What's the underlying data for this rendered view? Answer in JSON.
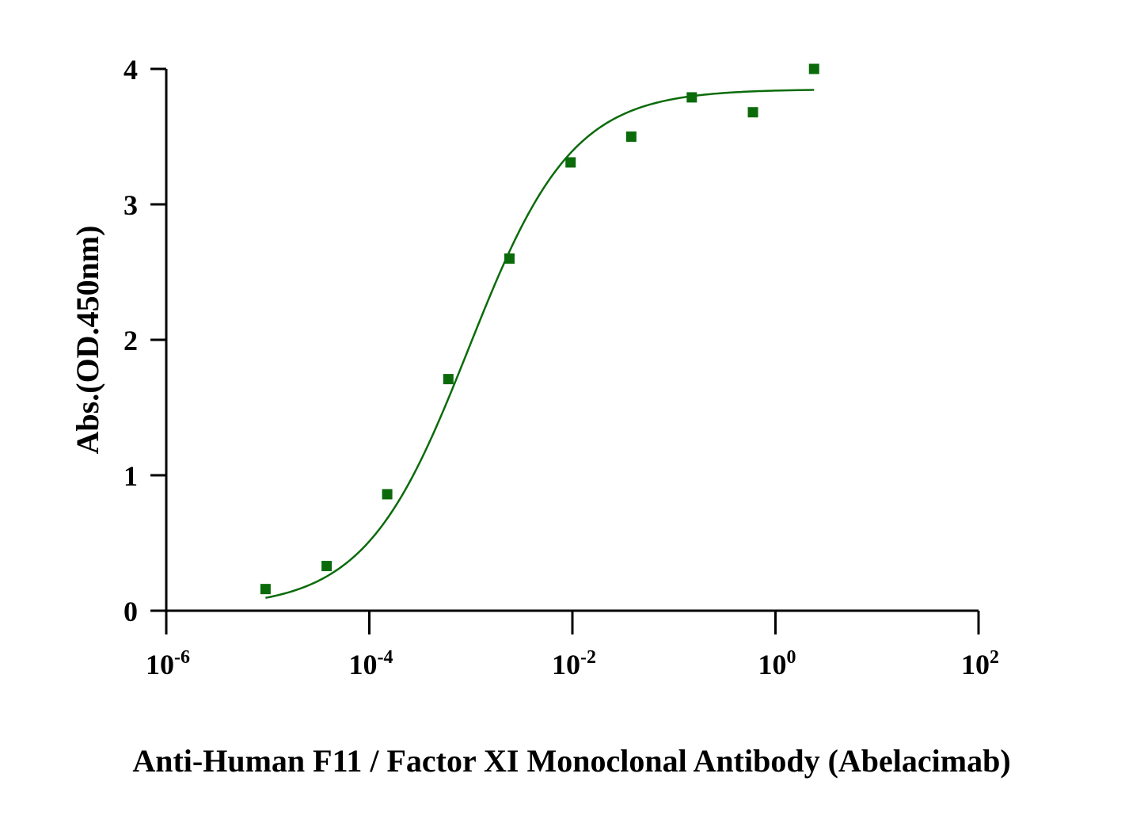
{
  "chart_data": {
    "type": "scatter",
    "title": "",
    "xlabel": "Anti-Human F11 / Factor XI Monoclonal Antibody (Abelacimab)",
    "ylabel": "Abs.(OD.450nm)",
    "xscale": "log",
    "xlim": [
      1e-06,
      100
    ],
    "ylim": [
      0,
      4
    ],
    "x_ticks": [
      {
        "base": "10",
        "exp": "-6"
      },
      {
        "base": "10",
        "exp": "-4"
      },
      {
        "base": "10",
        "exp": "-2"
      },
      {
        "base": "10",
        "exp": "0"
      },
      {
        "base": "10",
        "exp": "2"
      }
    ],
    "y_ticks": [
      "0",
      "1",
      "2",
      "3",
      "4"
    ],
    "grid": false,
    "series": [
      {
        "color": "#0b6b0b",
        "marker": "square",
        "points": [
          {
            "x": 9.5e-06,
            "y": 0.16
          },
          {
            "x": 3.8e-05,
            "y": 0.33
          },
          {
            "x": 0.00015,
            "y": 0.86
          },
          {
            "x": 0.0006,
            "y": 1.71
          },
          {
            "x": 0.0024,
            "y": 2.6
          },
          {
            "x": 0.0096,
            "y": 3.31
          },
          {
            "x": 0.038,
            "y": 3.5
          },
          {
            "x": 0.15,
            "y": 3.79
          },
          {
            "x": 0.6,
            "y": 3.68
          },
          {
            "x": 2.4,
            "y": 4.0
          }
        ],
        "fit": {
          "model": "4PL",
          "bottom": 0.02,
          "top": 3.85,
          "ec50": 0.00095,
          "hill": 0.85,
          "x_range": [
            9.5e-06,
            2.4
          ]
        }
      }
    ]
  }
}
